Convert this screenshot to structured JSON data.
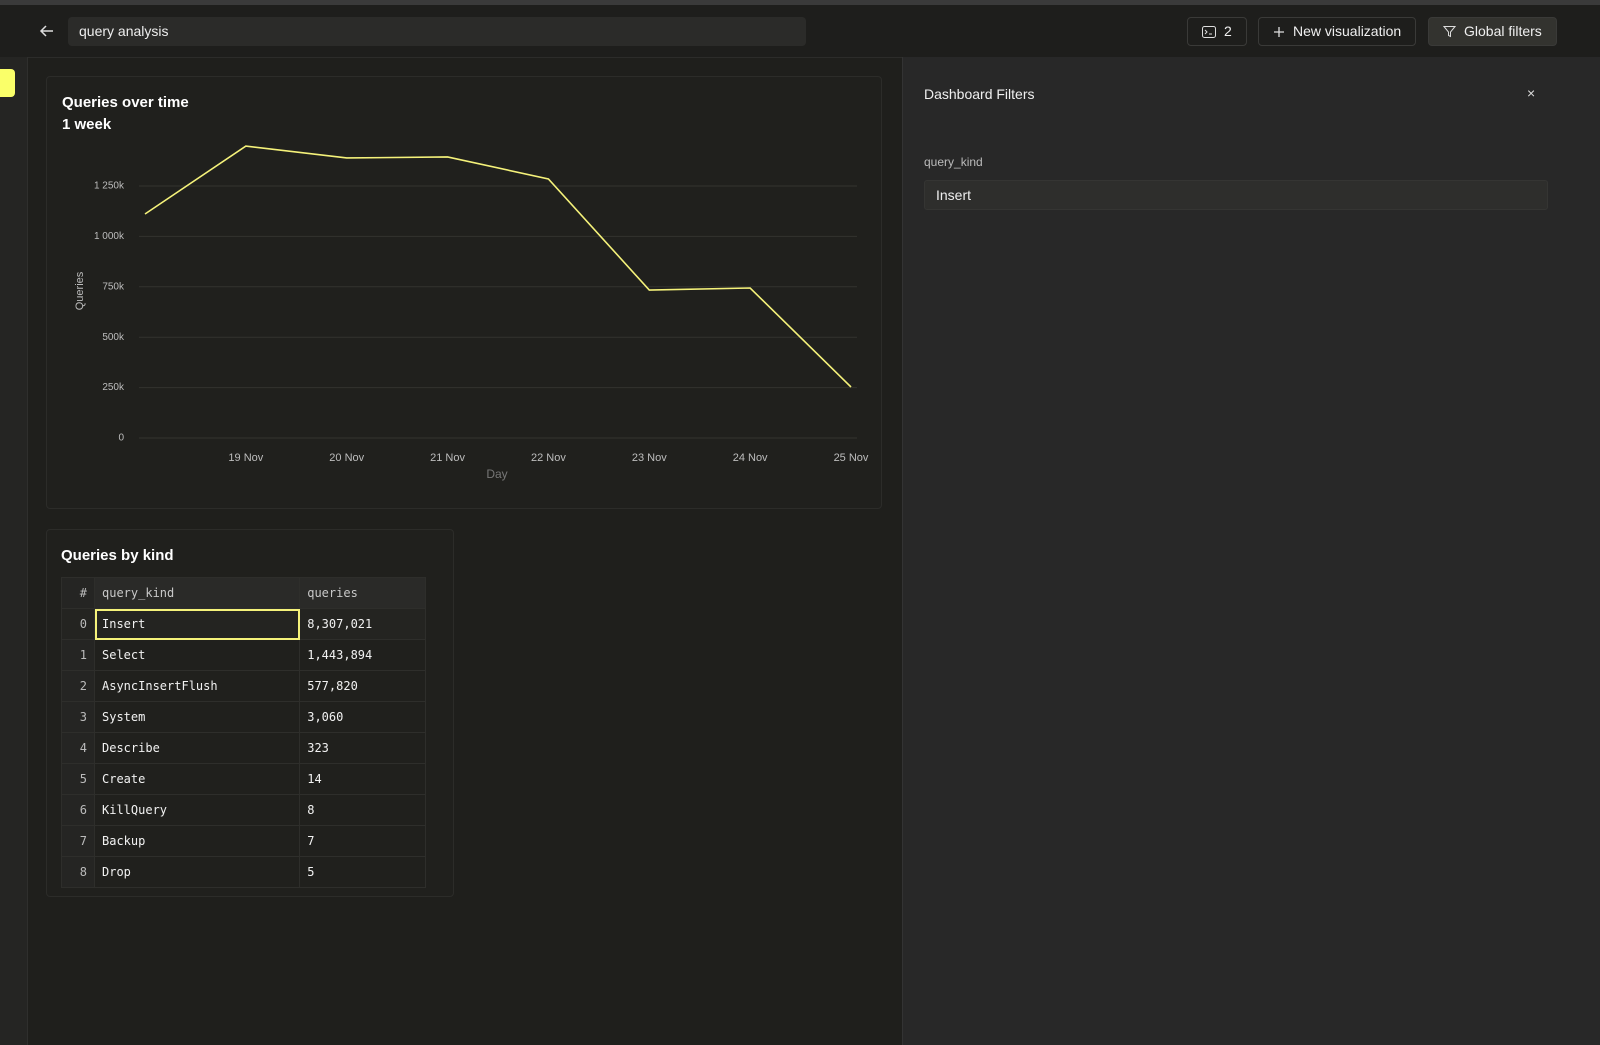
{
  "header": {
    "search": "query analysis",
    "badge": "2",
    "new_button": "New visualization",
    "filters_button": "Global filters"
  },
  "chart_data": {
    "type": "line",
    "title": "Queries over time",
    "subtitle": "1 week",
    "x_label": "Day",
    "y_label": "Queries",
    "categories": [
      null,
      "19 Nov",
      "20 Nov",
      "21 Nov",
      "22 Nov",
      "23 Nov",
      "24 Nov",
      "25 Nov"
    ],
    "values": [
      1111000,
      1448000,
      1389000,
      1394000,
      1285000,
      734000,
      744000,
      253000
    ],
    "color": "#f5f27a",
    "ylim": [
      0,
      1500000
    ],
    "yticks": [
      0,
      {
        "value": 250000,
        "label": "250k"
      },
      {
        "value": 500000,
        "label": "500k"
      },
      {
        "value": 750000,
        "label": "750k"
      },
      {
        "value": 1000000,
        "label": "1 000k"
      },
      {
        "value": 1250000,
        "label": "1 250k"
      }
    ],
    "grid": true
  },
  "table": {
    "title": "Queries by kind",
    "columns": [
      "#",
      "query_kind",
      "queries"
    ],
    "rows": [
      [
        "0",
        "Insert",
        "8,307,021"
      ],
      [
        "1",
        "Select",
        "1,443,894"
      ],
      [
        "2",
        "AsyncInsertFlush",
        "577,820"
      ],
      [
        "3",
        "System",
        "3,060"
      ],
      [
        "4",
        "Describe",
        "323"
      ],
      [
        "5",
        "Create",
        "14"
      ],
      [
        "6",
        "KillQuery",
        "8"
      ],
      [
        "7",
        "Backup",
        "7"
      ],
      [
        "8",
        "Drop",
        "5"
      ]
    ]
  },
  "filters": {
    "title": "Dashboard Filters",
    "close": "×",
    "field": "query_kind",
    "value": "Insert"
  }
}
